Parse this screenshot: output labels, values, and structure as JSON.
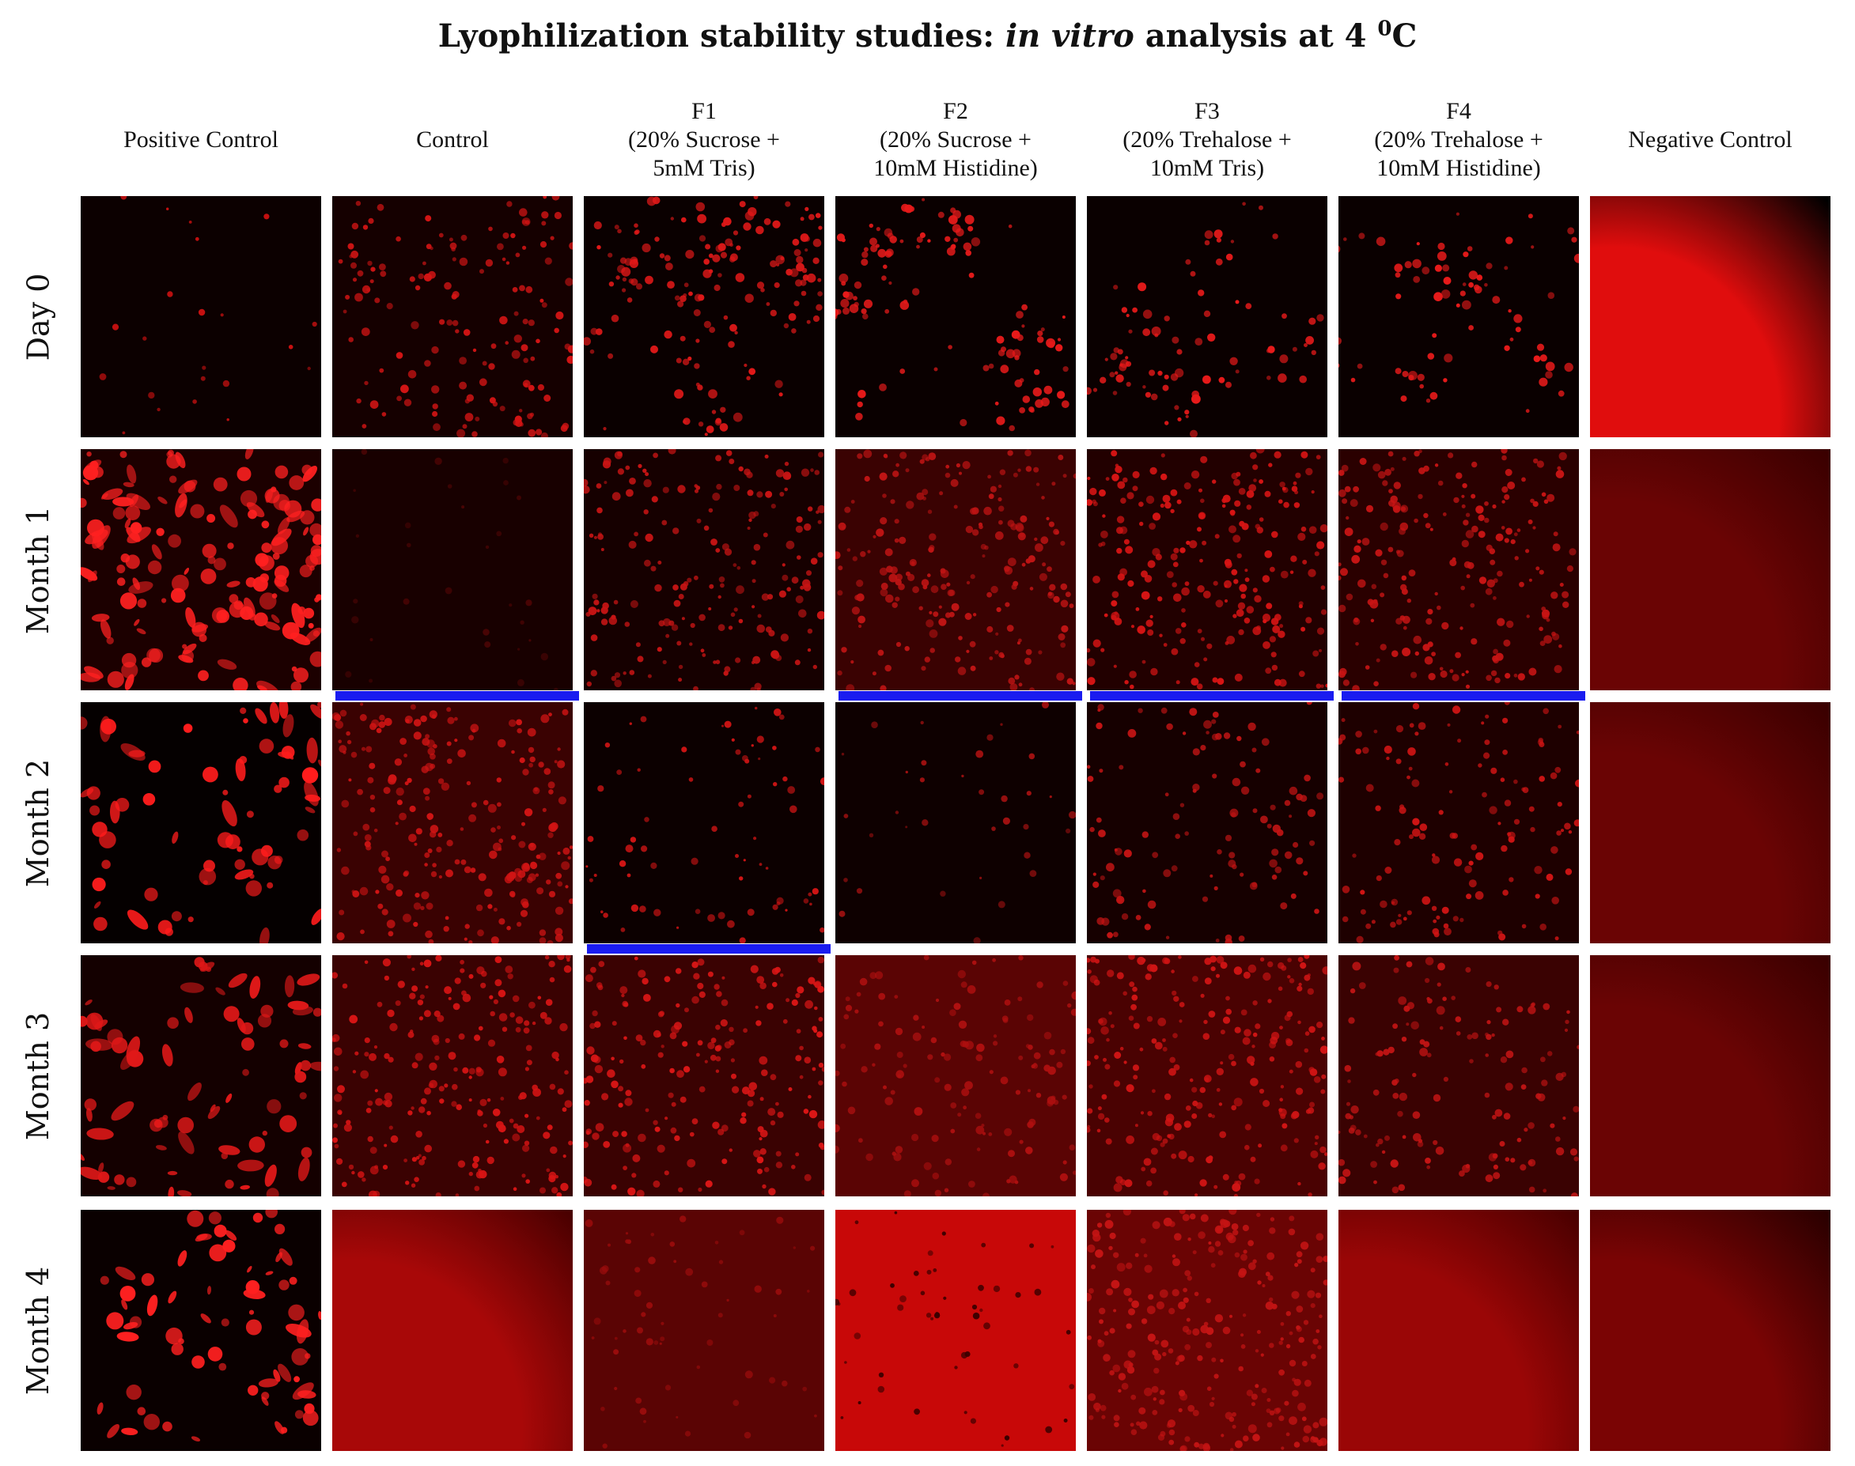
{
  "title": {
    "prefix": "Lyophilization stability studies: ",
    "italic": "in vitro",
    "middle": " analysis at 4 ",
    "superscript": "0",
    "suffix": "C"
  },
  "columns": [
    {
      "lines": [
        "Positive Control"
      ]
    },
    {
      "lines": [
        "Control"
      ]
    },
    {
      "lines": [
        "F1",
        "(20% Sucrose +",
        "5mM Tris)"
      ]
    },
    {
      "lines": [
        "F2",
        "(20% Sucrose +",
        "10mM Histidine)"
      ]
    },
    {
      "lines": [
        "F3",
        "(20% Trehalose +",
        "10mM Tris)"
      ]
    },
    {
      "lines": [
        "F4",
        "(20% Trehalose +",
        "10mM Histidine)"
      ]
    },
    {
      "lines": [
        "Negative Control"
      ]
    }
  ],
  "rows": [
    "Day 0",
    "Month 1",
    "Month 2",
    "Month 3",
    "Month 4"
  ],
  "colors": {
    "background": "#000000",
    "cell_signal": "#ff1a1a",
    "marker_bar": "#1a1cf0"
  },
  "cells": [
    [
      {
        "type": "sparse",
        "bg": "#0c0000",
        "dots": 22,
        "fill": "#c81010"
      },
      {
        "type": "dense",
        "bg": "#150000",
        "dots": 150,
        "fill": "#d41414"
      },
      {
        "type": "clusters",
        "bg": "#0a0000",
        "dots": 170,
        "fill": "#e01818"
      },
      {
        "type": "clusters",
        "bg": "#0a0000",
        "dots": 120,
        "fill": "#e81a1a"
      },
      {
        "type": "clusters",
        "bg": "#0a0000",
        "dots": 90,
        "fill": "#ea1a1a"
      },
      {
        "type": "clusters",
        "bg": "#0a0000",
        "dots": 80,
        "fill": "#e81a1a"
      },
      {
        "type": "flat",
        "bg": "#e00d0d",
        "vignette": "#000000"
      }
    ],
    [
      {
        "type": "cells",
        "bg": "#1c0000",
        "dots": 160,
        "fill": "#ff2020"
      },
      {
        "type": "sparse",
        "bg": "#180000",
        "dots": 30,
        "fill": "#4a0404"
      },
      {
        "type": "dense",
        "bg": "#160000",
        "dots": 190,
        "fill": "#c81414"
      },
      {
        "type": "dense",
        "bg": "#3a0202",
        "dots": 210,
        "fill": "#c01414"
      },
      {
        "type": "dense",
        "bg": "#220000",
        "dots": 230,
        "fill": "#d81414"
      },
      {
        "type": "dense",
        "bg": "#2a0000",
        "dots": 210,
        "fill": "#c81414"
      },
      {
        "type": "flat",
        "bg": "#6a0404",
        "vignette": "#3a0000"
      }
    ],
    [
      {
        "type": "cells",
        "bg": "#050000",
        "dots": 70,
        "fill": "#ff1c1c"
      },
      {
        "type": "dense",
        "bg": "#3a0202",
        "dots": 230,
        "fill": "#d01414"
      },
      {
        "type": "sparse",
        "bg": "#0c0000",
        "dots": 70,
        "fill": "#d01414"
      },
      {
        "type": "sparse",
        "bg": "#0e0000",
        "dots": 35,
        "fill": "#a01010"
      },
      {
        "type": "dense",
        "bg": "#160000",
        "dots": 110,
        "fill": "#c41414"
      },
      {
        "type": "dense",
        "bg": "#1e0000",
        "dots": 130,
        "fill": "#d01414"
      },
      {
        "type": "flat",
        "bg": "#6a0404",
        "vignette": "#3a0000"
      }
    ],
    [
      {
        "type": "cells",
        "bg": "#140000",
        "dots": 80,
        "fill": "#e01818"
      },
      {
        "type": "dense",
        "bg": "#3a0202",
        "dots": 220,
        "fill": "#d81414"
      },
      {
        "type": "dense",
        "bg": "#3a0202",
        "dots": 200,
        "fill": "#dc1616"
      },
      {
        "type": "dense",
        "bg": "#5a0404",
        "dots": 130,
        "fill": "#b01010"
      },
      {
        "type": "dense",
        "bg": "#4a0202",
        "dots": 230,
        "fill": "#d01414"
      },
      {
        "type": "dense",
        "bg": "#3a0202",
        "dots": 140,
        "fill": "#c41414"
      },
      {
        "type": "flat",
        "bg": "#6a0404",
        "vignette": "#3a0000"
      }
    ],
    [
      {
        "type": "cells",
        "bg": "#0a0000",
        "dots": 70,
        "fill": "#ff2020"
      },
      {
        "type": "flat",
        "bg": "#a80808",
        "vignette": "#4a0000"
      },
      {
        "type": "sparse",
        "bg": "#5a0404",
        "dots": 60,
        "fill": "#9a0c0c"
      },
      {
        "type": "bright",
        "bg": "#c80808",
        "dots": 50,
        "fill": "#3a0000"
      },
      {
        "type": "dense",
        "bg": "#6a0404",
        "dots": 260,
        "fill": "#c41414"
      },
      {
        "type": "flat",
        "bg": "#9a0606",
        "vignette": "#4a0000"
      },
      {
        "type": "flat",
        "bg": "#7a0404",
        "vignette": "#2a0000"
      }
    ]
  ],
  "marker_bars": [
    {
      "row": 2,
      "col": 1
    },
    {
      "row": 2,
      "col": 3
    },
    {
      "row": 2,
      "col": 4
    },
    {
      "row": 2,
      "col": 5
    },
    {
      "row": 3,
      "col": 2
    }
  ]
}
